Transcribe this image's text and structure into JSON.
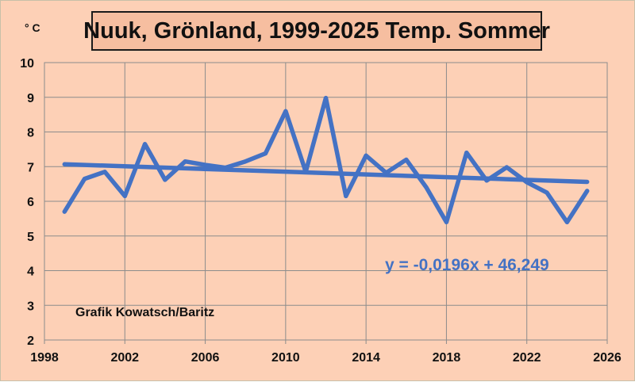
{
  "colors": {
    "background": "#fdd0b6",
    "plot_area": "#fdd0b6",
    "title_box": "#f6bea0",
    "series": "#4472c4",
    "trend": "#4472c4",
    "grid": "#8c8c8c",
    "equation": "#4472c4"
  },
  "unit_label": "° C",
  "equation_text": "y = -0,0196x + 46,249",
  "credit_text": "Grafik Kowatsch/Baritz",
  "chart_data": {
    "type": "line",
    "title": "Nuuk, Grönland, 1999-2025 Temp. Sommer",
    "xlabel": "",
    "ylabel": "° C",
    "xlim": [
      1998,
      2026
    ],
    "ylim": [
      2,
      10
    ],
    "x_ticks": [
      1998,
      2002,
      2006,
      2010,
      2014,
      2018,
      2022,
      2026
    ],
    "y_ticks": [
      2,
      3,
      4,
      5,
      6,
      7,
      8,
      9,
      10
    ],
    "grid": true,
    "legend": "none",
    "series": [
      {
        "values_x": [
          1999,
          2000,
          2001,
          2002,
          2003,
          2004,
          2005,
          2006,
          2007,
          2008,
          2009,
          2010,
          2011,
          2012,
          2013,
          2014,
          2015,
          2016,
          2017,
          2018,
          2019,
          2020,
          2021,
          2022,
          2023,
          2024,
          2025
        ],
        "values_y": [
          5.7,
          6.65,
          6.85,
          6.15,
          7.65,
          6.62,
          7.15,
          7.05,
          6.97,
          7.15,
          7.38,
          8.6,
          6.85,
          8.98,
          6.15,
          7.32,
          6.82,
          7.2,
          6.4,
          5.4,
          7.4,
          6.6,
          6.98,
          6.55,
          6.25,
          5.4,
          6.3
        ]
      }
    ],
    "trendline": {
      "slope": -0.0196,
      "intercept": 46.249,
      "x_range": [
        1999,
        2025
      ]
    }
  }
}
